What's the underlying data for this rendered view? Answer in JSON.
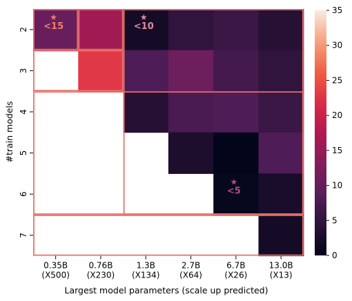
{
  "chart_data": {
    "type": "heatmap",
    "xlabel": "Largest model parameters (scale up predicted)",
    "ylabel": "#train models",
    "x_categories": [
      [
        "0.35B",
        "(X500)"
      ],
      [
        "0.76B",
        "(X230)"
      ],
      [
        "1.3B",
        "(X134)"
      ],
      [
        "2.7B",
        "(X64)"
      ],
      [
        "6.7B",
        "(X26)"
      ],
      [
        "13.0B",
        "(X13)"
      ]
    ],
    "y_categories": [
      "2",
      "3",
      "4",
      "5",
      "6",
      "7"
    ],
    "values": [
      [
        10.5,
        16.0,
        2.0,
        5.0,
        6.0,
        4.0
      ],
      [
        null,
        23.0,
        8.0,
        11.0,
        7.0,
        5.0
      ],
      [
        null,
        null,
        4.0,
        7.5,
        8.0,
        6.0
      ],
      [
        null,
        null,
        null,
        3.0,
        0.0,
        8.0
      ],
      [
        null,
        null,
        null,
        null,
        0.5,
        2.5
      ],
      [
        null,
        null,
        null,
        null,
        null,
        2.0
      ]
    ],
    "colorbar": {
      "min": 0,
      "max": 35,
      "ticks": [
        0,
        5,
        10,
        15,
        20,
        25,
        30,
        35
      ]
    },
    "annotations": [
      {
        "row": 0,
        "col": 0,
        "star": "★",
        "label": "<15",
        "color": "#f08060"
      },
      {
        "row": 0,
        "col": 2,
        "star": "★",
        "label": "<10",
        "color": "#e08aa0"
      },
      {
        "row": 4,
        "col": 4,
        "star": "★",
        "label": "<5",
        "color": "#b04a90"
      }
    ],
    "outline_color": "#e8706a"
  }
}
